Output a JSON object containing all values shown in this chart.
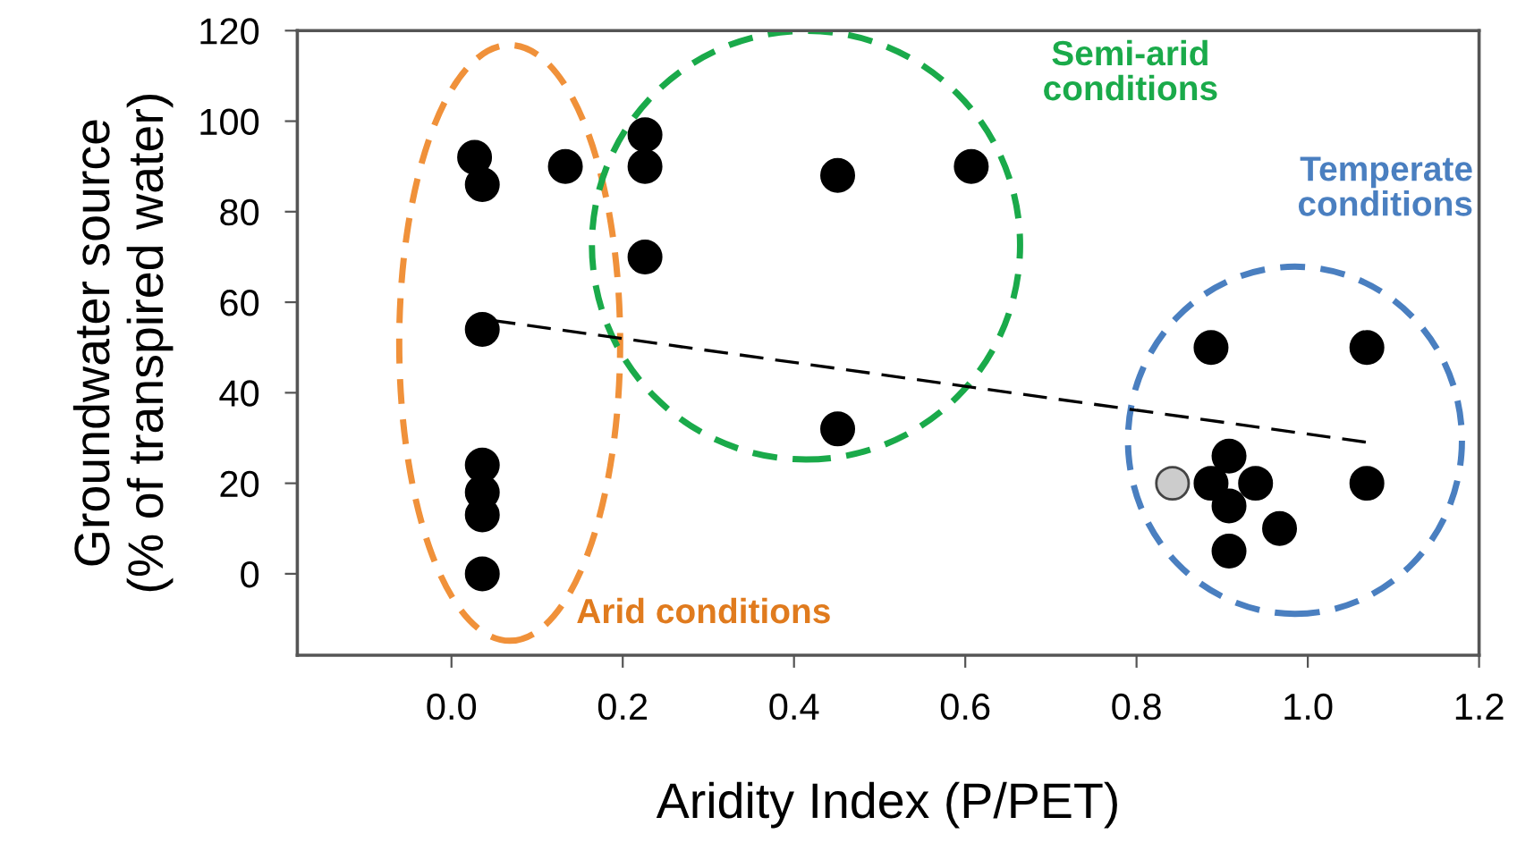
{
  "chart_data": {
    "type": "scatter",
    "xlabel": "Aridity Index (P/PET)",
    "ylabel": "Groundwater source\n(% of transpired water)",
    "xlim": [
      -0.18,
      1.2
    ],
    "xticks": [
      {
        "value": 0,
        "label": "0.0"
      },
      0.2,
      0.4,
      0.6,
      0.8,
      {
        "value": 1,
        "label": "1.0"
      },
      1.2
    ],
    "ylim": [
      -18,
      120
    ],
    "yticks": [
      0,
      20,
      40,
      60,
      80,
      100,
      120
    ],
    "grid": false,
    "marker": "circle",
    "annotations": [
      "Semi-arid\nconditions",
      "Temperate\nconditions",
      "Arid conditions"
    ],
    "series": [
      {
        "color": "#000000",
        "x": [
          0.027,
          0.036,
          0.133,
          0.226,
          0.226,
          0.226,
          0.451,
          0.607,
          0.451,
          0.036,
          0.036,
          0.036,
          0.036,
          0.036,
          0.887,
          1.069,
          1.069,
          0.887,
          0.908,
          0.939,
          0.908,
          0.967,
          0.908
        ],
        "values": [
          92,
          86,
          90,
          97,
          90,
          70,
          88,
          90,
          32,
          54,
          24,
          18,
          13,
          0,
          50,
          50,
          20,
          20,
          26,
          20,
          15,
          10,
          5
        ]
      },
      {
        "color": "#cccccc",
        "x": [
          0.842
        ],
        "values": [
          20
        ]
      },
      {
        "type": "line",
        "color": "#000000",
        "line_style": "dashed",
        "marker": "none",
        "x": [
          0.047,
          1.071
        ],
        "values": [
          56,
          29
        ]
      }
    ]
  }
}
